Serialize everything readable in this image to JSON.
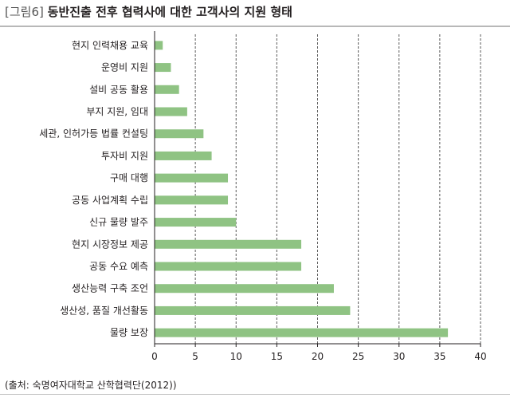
{
  "figure": {
    "label": "[그림6]",
    "title": "동반진출 전후 협력사에 대한 고객사의 지원 형태",
    "source": "(출처: 숙명여자대학교 산학협력단(2012))"
  },
  "chart_data": {
    "type": "bar",
    "orientation": "horizontal",
    "categories": [
      "현지 인력채용 교육",
      "운영비 지원",
      "설비 공동 활용",
      "부지 지원, 임대",
      "세관, 인허가등 법률 컨설팅",
      "투자비 지원",
      "구매 대행",
      "공동 사업계획 수립",
      "신규 물량 발주",
      "현지 시장정보 제공",
      "공동 수요 예측",
      "생산능력 구축 조언",
      "생산성, 품질 개선활동",
      "물량 보장"
    ],
    "values": [
      1,
      2,
      3,
      4,
      6,
      7,
      9,
      9,
      10,
      18,
      18,
      22,
      24,
      36
    ],
    "xlim": [
      0,
      40
    ],
    "xticks": [
      "0",
      "5",
      "10",
      "15",
      "20",
      "25",
      "30",
      "35",
      "40"
    ],
    "grid": "vertical-dashed",
    "bar_color": "#8fc383"
  }
}
